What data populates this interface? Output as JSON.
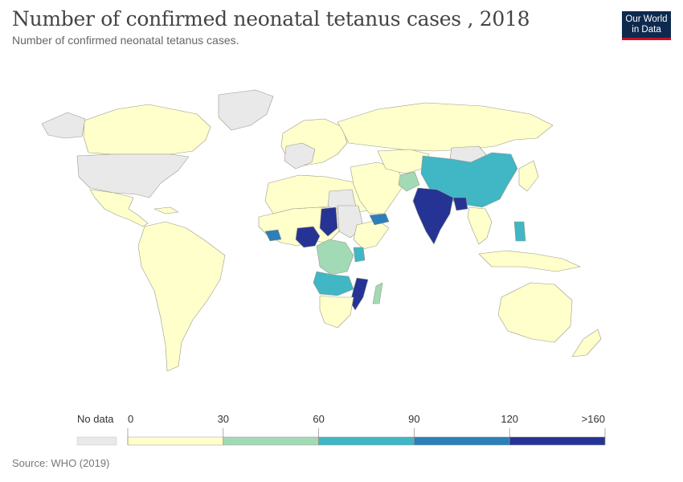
{
  "header": {
    "title": "Number of confirmed neonatal tetanus cases , 2018",
    "subtitle": "Number of confirmed neonatal tetanus cases."
  },
  "logo": {
    "line1": "Our World",
    "line2": "in Data"
  },
  "legend": {
    "no_data_label": "No data",
    "no_data_color": "#e9e9e9",
    "ticks": [
      "0",
      "30",
      "60",
      "90",
      "120",
      ">160"
    ],
    "bins": [
      {
        "from": 0,
        "to": 30,
        "color": "#ffffcc"
      },
      {
        "from": 30,
        "to": 60,
        "color": "#a1dab4"
      },
      {
        "from": 60,
        "to": 90,
        "color": "#41b6c4"
      },
      {
        "from": 90,
        "to": 120,
        "color": "#2c7fb8"
      },
      {
        "from": 120,
        "to": 160,
        "color": "#253494"
      }
    ]
  },
  "map_data": {
    "type": "choropleth",
    "year": 2018,
    "regions": [
      {
        "id": "na",
        "bin": 0
      },
      {
        "id": "usa",
        "bin": -1
      },
      {
        "id": "greenland",
        "bin": -1
      },
      {
        "id": "mexico-central-america",
        "bin": 0
      },
      {
        "id": "south-america",
        "bin": 0
      },
      {
        "id": "north-africa",
        "bin": 0
      },
      {
        "id": "sahel-west-africa",
        "bin": 0
      },
      {
        "id": "libya",
        "bin": -1
      },
      {
        "id": "sudan",
        "bin": -1
      },
      {
        "id": "nigeria",
        "bin": 4
      },
      {
        "id": "chad",
        "bin": 4
      },
      {
        "id": "liberia-ivory",
        "bin": 3
      },
      {
        "id": "drc",
        "bin": 1
      },
      {
        "id": "angola-zambia",
        "bin": 2
      },
      {
        "id": "mozambique",
        "bin": 4
      },
      {
        "id": "kenya",
        "bin": 2
      },
      {
        "id": "madagascar",
        "bin": 1
      },
      {
        "id": "southern-africa",
        "bin": 0
      },
      {
        "id": "europe",
        "bin": 0
      },
      {
        "id": "western-europe",
        "bin": -1
      },
      {
        "id": "russia",
        "bin": 0
      },
      {
        "id": "middle-east",
        "bin": 0
      },
      {
        "id": "yemen",
        "bin": 3
      },
      {
        "id": "afghanistan",
        "bin": 1
      },
      {
        "id": "central-asia",
        "bin": 0
      },
      {
        "id": "china",
        "bin": 2
      },
      {
        "id": "mongolia",
        "bin": -1
      },
      {
        "id": "india",
        "bin": 4
      },
      {
        "id": "bangladesh",
        "bin": 4
      },
      {
        "id": "southeast-asia",
        "bin": 0
      },
      {
        "id": "philippines",
        "bin": 2
      },
      {
        "id": "indonesia",
        "bin": 0
      },
      {
        "id": "japan-korea",
        "bin": 0
      },
      {
        "id": "australia",
        "bin": 0
      },
      {
        "id": "new-zealand",
        "bin": 0
      }
    ]
  },
  "footer": {
    "source": "Source: WHO (2019)"
  }
}
